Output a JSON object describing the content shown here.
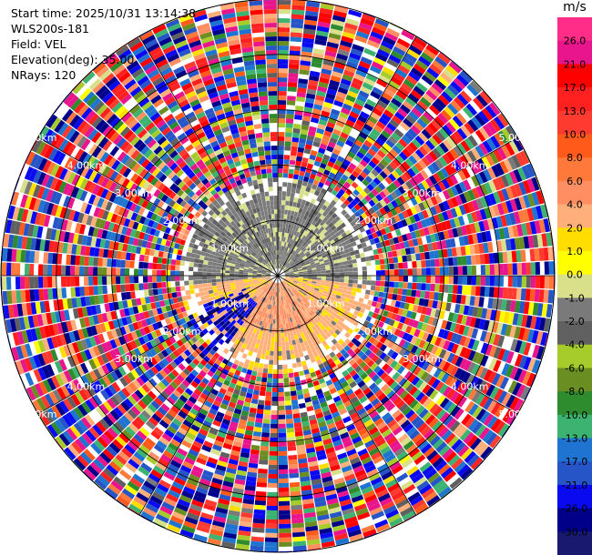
{
  "info": {
    "start_time": "Start time: 2025/10/31 13:14:38",
    "instrument": "WLS200s-181",
    "field": "Field: VEL",
    "elevation": "Elevation(deg): 35.00",
    "nrays": "NRays: 120"
  },
  "colorbar": {
    "unit": "m/s",
    "ticks": [
      "26.0",
      "21.0",
      "17.0",
      "13.0",
      "10.0",
      "8.0",
      "6.0",
      "4.0",
      "2.0",
      "1.0",
      "0.0",
      "-1.0",
      "-2.0",
      "-4.0",
      "-6.0",
      "-8.0",
      "-10.0",
      "-13.0",
      "-17.0",
      "-21.0",
      "-26.0",
      "-30.0"
    ],
    "colors": [
      "#ff2d87",
      "#e8158c",
      "#ff0000",
      "#ff2020",
      "#ff3b30",
      "#ff5a1a",
      "#ff7a3a",
      "#ff8e62",
      "#ffb07a",
      "#ffdd00",
      "#ffff00",
      "#d8e08a",
      "#7a7a7a",
      "#606060",
      "#a5cc2a",
      "#6b8e23",
      "#2e8b2e",
      "#3cb371",
      "#1e74d0",
      "#2655c8",
      "#0a0af0",
      "#00008b",
      "#191970"
    ]
  },
  "chart_data": {
    "type": "polar_ppi",
    "field": "VEL",
    "units": "m/s",
    "nrays": 120,
    "elevation_deg": 35.0,
    "range_rings_km": [
      1.0,
      2.0,
      3.0,
      4.0,
      5.0
    ],
    "ring_labels": [
      "1.00km",
      "2.00km",
      "3.00km",
      "4.00km",
      "5.00km"
    ],
    "near_field": {
      "max_range_km": 1.7,
      "north_sector_velocity": -1.0,
      "south_sector_velocity": 3.0,
      "southwest_patch_velocity": -13.0
    },
    "far_field": "noise (random velocities across full color range)"
  }
}
